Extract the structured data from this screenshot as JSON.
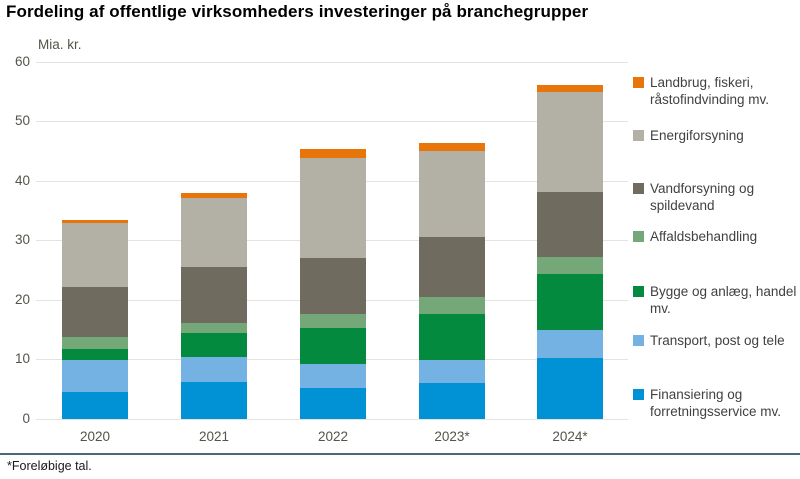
{
  "page": {
    "title": "Fordeling af offentlige virksomheders investeringer på branchegrupper",
    "footnote": "*Foreløbige tal."
  },
  "chart_data": {
    "type": "bar",
    "stacked": true,
    "title": "Fordeling af offentlige virksomheders investeringer på branchegrupper",
    "unit": "Mia. kr.",
    "xlabel": "",
    "ylabel": "Mia. kr.",
    "ylim": [
      0,
      60
    ],
    "ytick_step": 10,
    "grid": true,
    "legend_position": "right",
    "categories": [
      "2020",
      "2021",
      "2022",
      "2023*",
      "2024*"
    ],
    "series": [
      {
        "name": "Finansiering og forretningsservice mv.",
        "color": "#0092D4",
        "values": [
          4.6,
          6.2,
          5.2,
          6.0,
          10.3
        ]
      },
      {
        "name": "Transport, post og tele",
        "color": "#73B2E2",
        "values": [
          5.3,
          4.2,
          4.0,
          3.9,
          4.6
        ]
      },
      {
        "name": "Bygge og anlæg, handel mv.",
        "color": "#038A3E",
        "values": [
          1.8,
          4.0,
          6.1,
          7.8,
          9.4
        ]
      },
      {
        "name": "Affaldsbehandling",
        "color": "#74A878",
        "values": [
          2.1,
          1.7,
          2.3,
          2.8,
          3.0
        ]
      },
      {
        "name": "Vandforsyning og spildevand",
        "color": "#6F6B5F",
        "values": [
          8.4,
          9.5,
          9.5,
          10.1,
          10.9
        ]
      },
      {
        "name": "Energiforsyning",
        "color": "#B3B1A5",
        "values": [
          10.7,
          11.6,
          16.8,
          14.5,
          16.8
        ]
      },
      {
        "name": "Landbrug, fiskeri, råstofindvinding mv.",
        "color": "#E8750A",
        "values": [
          0.5,
          0.8,
          1.4,
          1.3,
          1.2
        ]
      }
    ],
    "totals": [
      33.4,
      38.0,
      45.3,
      46.4,
      56.2
    ]
  },
  "colors": {
    "divider": "#46697E",
    "gridline": "#E4E3DE",
    "axis_text": "#55534B",
    "legend_text": "#414141",
    "title_text": "#000000",
    "background": "#FFFFFF"
  }
}
